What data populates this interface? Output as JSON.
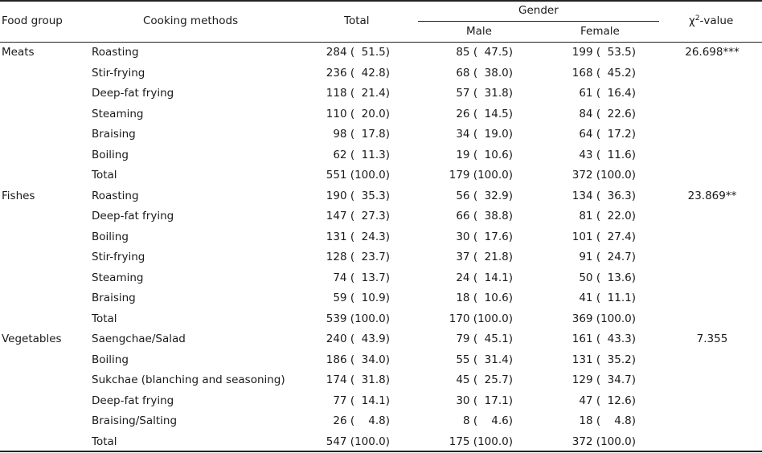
{
  "header": {
    "food_group": "Food group",
    "cooking_methods": "Cooking methods",
    "total": "Total",
    "gender": "Gender",
    "male": "Male",
    "female": "Female",
    "chi_symbol": "χ",
    "chi_power": "2",
    "chi_suffix": "-value"
  },
  "rows": [
    {
      "group": "Meats",
      "method": "Roasting",
      "total": "284 (  51.5)",
      "male": "85 (  47.5)",
      "female": "199 (  53.5)",
      "chi": "26.698***"
    },
    {
      "group": "",
      "method": "Stir-frying",
      "total": "236 (  42.8)",
      "male": "68 (  38.0)",
      "female": "168 (  45.2)",
      "chi": ""
    },
    {
      "group": "",
      "method": "Deep-fat frying",
      "total": "118 (  21.4)",
      "male": "57 (  31.8)",
      "female": "61 (  16.4)",
      "chi": ""
    },
    {
      "group": "",
      "method": "Steaming",
      "total": "110 (  20.0)",
      "male": "26 (  14.5)",
      "female": "84 (  22.6)",
      "chi": ""
    },
    {
      "group": "",
      "method": "Braising",
      "total": "98 (  17.8)",
      "male": "34 (  19.0)",
      "female": "64 (  17.2)",
      "chi": ""
    },
    {
      "group": "",
      "method": "Boiling",
      "total": "62 (  11.3)",
      "male": "19 (  10.6)",
      "female": "43 (  11.6)",
      "chi": ""
    },
    {
      "group": "",
      "method": "Total",
      "total": "551 (100.0)",
      "male": "179 (100.0)",
      "female": "372 (100.0)",
      "chi": ""
    },
    {
      "group": "Fishes",
      "method": "Roasting",
      "total": "190 (  35.3)",
      "male": "56 (  32.9)",
      "female": "134 (  36.3)",
      "chi": "23.869**"
    },
    {
      "group": "",
      "method": "Deep-fat frying",
      "total": "147 (  27.3)",
      "male": "66 (  38.8)",
      "female": "81 (  22.0)",
      "chi": ""
    },
    {
      "group": "",
      "method": "Boiling",
      "total": "131 (  24.3)",
      "male": "30 (  17.6)",
      "female": "101 (  27.4)",
      "chi": ""
    },
    {
      "group": "",
      "method": "Stir-frying",
      "total": "128 (  23.7)",
      "male": "37 (  21.8)",
      "female": "91 (  24.7)",
      "chi": ""
    },
    {
      "group": "",
      "method": "Steaming",
      "total": "74 (  13.7)",
      "male": "24 (  14.1)",
      "female": "50 (  13.6)",
      "chi": ""
    },
    {
      "group": "",
      "method": "Braising",
      "total": "59 (  10.9)",
      "male": "18 (  10.6)",
      "female": "41 (  11.1)",
      "chi": ""
    },
    {
      "group": "",
      "method": "Total",
      "total": "539 (100.0)",
      "male": "170 (100.0)",
      "female": "369 (100.0)",
      "chi": ""
    },
    {
      "group": "Vegetables",
      "method": "Saengchae/Salad",
      "total": "240 (  43.9)",
      "male": "79 (  45.1)",
      "female": "161 (  43.3)",
      "chi": "7.355"
    },
    {
      "group": "",
      "method": "Boiling",
      "total": "186 (  34.0)",
      "male": "55 (  31.4)",
      "female": "131 (  35.2)",
      "chi": ""
    },
    {
      "group": "",
      "method": "Sukchae (blanching and seasoning)",
      "total": "174 (  31.8)",
      "male": "45 (  25.7)",
      "female": "129 (  34.7)",
      "chi": ""
    },
    {
      "group": "",
      "method": "Deep-fat frying",
      "total": "77 (  14.1)",
      "male": "30 (  17.1)",
      "female": "47 (  12.6)",
      "chi": ""
    },
    {
      "group": "",
      "method": "Braising/Salting",
      "total": "26 (    4.8)",
      "male": "8 (    4.6)",
      "female": "18 (    4.8)",
      "chi": ""
    },
    {
      "group": "",
      "method": "Total",
      "total": "547 (100.0)",
      "male": "175 (100.0)",
      "female": "372 (100.0)",
      "chi": ""
    }
  ]
}
